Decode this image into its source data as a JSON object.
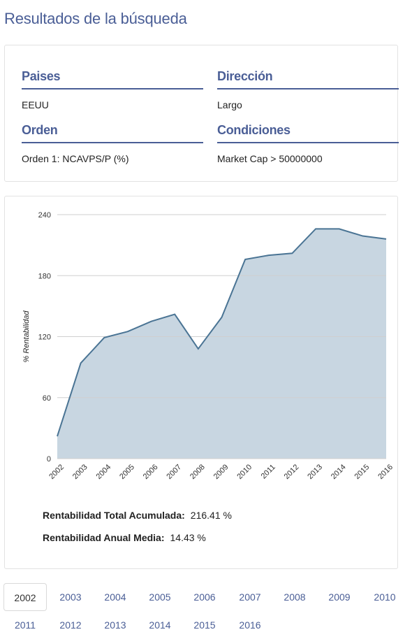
{
  "page": {
    "title": "Resultados de la búsqueda"
  },
  "filters": [
    {
      "label": "Paises",
      "value": "EEUU"
    },
    {
      "label": "Dirección",
      "value": "Largo"
    },
    {
      "label": "Orden",
      "value": "Orden 1: NCAVPS/P (%)"
    },
    {
      "label": "Condiciones",
      "value": "Market Cap > 50000000"
    }
  ],
  "chart_data": {
    "type": "area",
    "title": "",
    "xlabel": "",
    "ylabel": "% Rentabilidad",
    "ylim": [
      0,
      240
    ],
    "yticks": [
      "0",
      "60",
      "120",
      "180",
      "240"
    ],
    "grid": true,
    "series": [
      {
        "color": "#4a7494",
        "fill": "#c8d6e1",
        "x": [
          "2002",
          "2003",
          "2004",
          "2005",
          "2006",
          "2007",
          "2008",
          "2009",
          "2010",
          "2011",
          "2012",
          "2013",
          "2014",
          "2015",
          "2016"
        ],
        "y": [
          22,
          94,
          119,
          125,
          135,
          142,
          108,
          139,
          196,
          200,
          202,
          226,
          226,
          219,
          216
        ]
      }
    ]
  },
  "stats": {
    "total_label": "Rentabilidad Total Acumulada:",
    "total_value": "216.41 %",
    "annual_label": "Rentabilidad Anual Media:",
    "annual_value": "14.43 %"
  },
  "years": {
    "active": "2002",
    "row1": [
      "2002",
      "2003",
      "2004",
      "2005",
      "2006",
      "2007",
      "2008",
      "2009",
      "2010"
    ],
    "row2": [
      "2011",
      "2012",
      "2013",
      "2014",
      "2015",
      "2016"
    ]
  }
}
